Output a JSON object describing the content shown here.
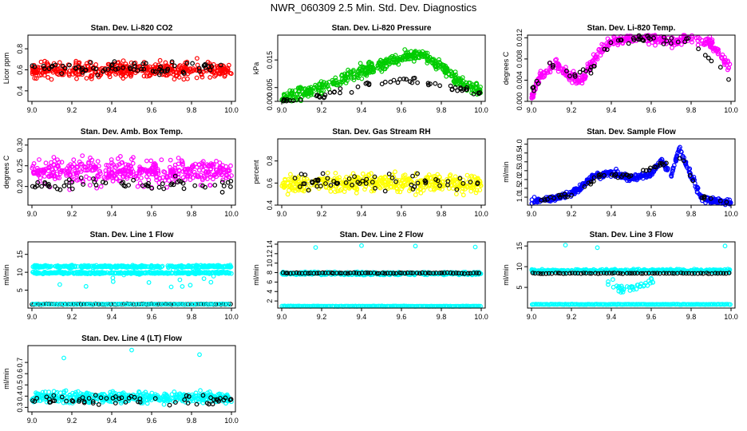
{
  "title": "NWR_060309  2.5 Min. Std. Dev. Diagnostics",
  "colors": {
    "red": "#ff0000",
    "green": "#00cc00",
    "magenta": "#ff00ff",
    "yellow": "#ffff00",
    "blue": "#0000ff",
    "cyan": "#00ffff",
    "black": "#000000"
  },
  "chart_data": [
    {
      "id": "p1",
      "type": "scatter",
      "title": "Stan. Dev. Li-820 CO2",
      "ylabel": "Licor ppm",
      "xlim": [
        8.98,
        10.02
      ],
      "ylim": [
        0.3,
        0.93
      ],
      "xticks": [
        "9.0",
        "9.2",
        "9.4",
        "9.6",
        "9.8",
        "10.0"
      ],
      "yticks": [
        {
          "v": 0.4,
          "label": "0.4"
        },
        {
          "v": 0.6,
          "label": "0.6"
        },
        {
          "v": 0.8,
          "label": "0.8"
        }
      ],
      "color": "red",
      "series": [
        {
          "name": "main",
          "kind": "noise",
          "n": 420,
          "center": 0.6,
          "spread": 0.09
        },
        {
          "name": "black",
          "kind": "noise",
          "n": 70,
          "center": 0.62,
          "spread": 0.08
        }
      ]
    },
    {
      "id": "p2",
      "type": "scatter",
      "title": "Stan. Dev. Li-820 Pressure",
      "ylabel": "kPa",
      "xlim": [
        8.98,
        10.02
      ],
      "ylim": [
        0,
        0.024
      ],
      "xticks": [
        "9.0",
        "9.2",
        "9.4",
        "9.6",
        "9.8",
        "10.0"
      ],
      "yticks": [
        {
          "v": 0.0,
          "label": "0.000"
        },
        {
          "v": 0.005,
          "label": "0.005"
        },
        {
          "v": 0.015,
          "label": "0.015"
        }
      ],
      "color": "green",
      "series": [
        {
          "name": "main",
          "kind": "curve",
          "n": 460,
          "curve": [
            [
              9.0,
              0.001
            ],
            [
              9.1,
              0.003
            ],
            [
              9.2,
              0.005
            ],
            [
              9.3,
              0.008
            ],
            [
              9.4,
              0.011
            ],
            [
              9.5,
              0.013
            ],
            [
              9.6,
              0.016
            ],
            [
              9.7,
              0.017
            ],
            [
              9.8,
              0.013
            ],
            [
              9.9,
              0.006
            ],
            [
              10.0,
              0.004
            ]
          ],
          "spread": 0.0025
        },
        {
          "name": "black",
          "kind": "curve",
          "n": 60,
          "curve": [
            [
              9.0,
              0.0
            ],
            [
              9.2,
              0.002
            ],
            [
              9.4,
              0.006
            ],
            [
              9.6,
              0.008
            ],
            [
              9.8,
              0.006
            ],
            [
              10.0,
              0.003
            ]
          ],
          "spread": 0.0015
        }
      ]
    },
    {
      "id": "p3",
      "type": "scatter",
      "title": "Stan. Dev. Li-820 Temp.",
      "ylabel": "degrees C",
      "xlim": [
        8.98,
        10.02
      ],
      "ylim": [
        0,
        0.0125
      ],
      "xticks": [
        "9.0",
        "9.2",
        "9.4",
        "9.6",
        "9.8",
        "10.0"
      ],
      "yticks": [
        {
          "v": 0.0,
          "label": "0.000"
        },
        {
          "v": 0.004,
          "label": "0.004"
        },
        {
          "v": 0.008,
          "label": "0.008"
        },
        {
          "v": 0.012,
          "label": "0.012"
        }
      ],
      "color": "magenta",
      "series": [
        {
          "name": "main",
          "kind": "curve",
          "n": 420,
          "curve": [
            [
              9.0,
              0.001
            ],
            [
              9.05,
              0.005
            ],
            [
              9.12,
              0.007
            ],
            [
              9.18,
              0.005
            ],
            [
              9.25,
              0.004
            ],
            [
              9.3,
              0.007
            ],
            [
              9.38,
              0.011
            ],
            [
              9.5,
              0.012
            ],
            [
              9.6,
              0.012
            ],
            [
              9.7,
              0.011
            ],
            [
              9.8,
              0.012
            ],
            [
              9.9,
              0.011
            ],
            [
              10.0,
              0.006
            ]
          ],
          "spread": 0.0012
        },
        {
          "name": "black",
          "kind": "curve",
          "n": 55,
          "curve": [
            [
              9.0,
              0.002
            ],
            [
              9.1,
              0.007
            ],
            [
              9.2,
              0.005
            ],
            [
              9.3,
              0.006
            ],
            [
              9.4,
              0.011
            ],
            [
              9.6,
              0.012
            ],
            [
              9.8,
              0.011
            ],
            [
              10.0,
              0.004
            ]
          ],
          "spread": 0.0009
        }
      ]
    },
    {
      "id": "p4",
      "type": "scatter",
      "title": "Stan. Dev. Amb. Box Temp.",
      "ylabel": "degrees C",
      "xlim": [
        8.98,
        10.02
      ],
      "ylim": [
        0.155,
        0.315
      ],
      "xticks": [
        "9.0",
        "9.2",
        "9.4",
        "9.6",
        "9.8",
        "10.0"
      ],
      "yticks": [
        {
          "v": 0.2,
          "label": "0.20"
        },
        {
          "v": 0.25,
          "label": "0.25"
        },
        {
          "v": 0.3,
          "label": "0.30"
        }
      ],
      "color": "magenta",
      "series": [
        {
          "name": "main",
          "kind": "noise",
          "n": 440,
          "center": 0.235,
          "spread": 0.035
        },
        {
          "name": "black",
          "kind": "noise",
          "n": 60,
          "center": 0.205,
          "spread": 0.02
        }
      ]
    },
    {
      "id": "p5",
      "type": "scatter",
      "title": "Stan. Dev. Gas Stream RH",
      "ylabel": "percent",
      "xlim": [
        8.98,
        10.02
      ],
      "ylim": [
        0.4,
        1.0
      ],
      "xticks": [
        "9.0",
        "9.2",
        "9.4",
        "9.6",
        "9.8",
        "10.0"
      ],
      "yticks": [
        {
          "v": 0.4,
          "label": "0.4"
        },
        {
          "v": 0.6,
          "label": "0.6"
        },
        {
          "v": 0.8,
          "label": "0.8"
        }
      ],
      "color": "yellow",
      "series": [
        {
          "name": "main",
          "kind": "noise",
          "n": 440,
          "center": 0.6,
          "spread": 0.1
        },
        {
          "name": "black",
          "kind": "noise",
          "n": 60,
          "center": 0.6,
          "spread": 0.08
        }
      ]
    },
    {
      "id": "p6",
      "type": "scatter",
      "title": "Stan. Dev. Sample Flow",
      "ylabel": "ml/min",
      "xlim": [
        8.98,
        10.02
      ],
      "ylim": [
        0.55,
        4.3
      ],
      "xticks": [
        "9.0",
        "9.2",
        "9.4",
        "9.6",
        "9.8",
        "10.0"
      ],
      "yticks": [
        {
          "v": 1.0,
          "label": "1.0"
        },
        {
          "v": 1.5,
          "label": "1.5"
        },
        {
          "v": 2.0,
          "label": "2.0"
        },
        {
          "v": 2.5,
          "label": "2.5"
        },
        {
          "v": 3.0,
          "label": "3.0"
        },
        {
          "v": 3.5,
          "label": "3.5"
        },
        {
          "v": 4.0,
          "label": "4.0"
        }
      ],
      "color": "blue",
      "series": [
        {
          "name": "main",
          "kind": "curve",
          "n": 460,
          "curve": [
            [
              9.0,
              0.8
            ],
            [
              9.1,
              0.9
            ],
            [
              9.2,
              1.2
            ],
            [
              9.25,
              1.6
            ],
            [
              9.3,
              2.1
            ],
            [
              9.4,
              2.4
            ],
            [
              9.5,
              2.1
            ],
            [
              9.6,
              2.3
            ],
            [
              9.65,
              3.1
            ],
            [
              9.7,
              2.2
            ],
            [
              9.74,
              3.8
            ],
            [
              9.8,
              2.2
            ],
            [
              9.85,
              1.0
            ],
            [
              9.9,
              0.8
            ],
            [
              10.0,
              0.7
            ]
          ],
          "spread": 0.22
        },
        {
          "name": "black",
          "kind": "curve",
          "n": 55,
          "curve": [
            [
              9.0,
              0.8
            ],
            [
              9.2,
              1.1
            ],
            [
              9.35,
              2.3
            ],
            [
              9.5,
              2.2
            ],
            [
              9.65,
              2.8
            ],
            [
              9.75,
              3.3
            ],
            [
              9.85,
              1.0
            ],
            [
              10.0,
              0.7
            ]
          ],
          "spread": 0.15
        }
      ]
    },
    {
      "id": "p7",
      "type": "scatter",
      "title": "Stan. Dev. Line 1 Flow",
      "ylabel": "ml/min",
      "xlim": [
        8.98,
        10.02
      ],
      "ylim": [
        0,
        18.5
      ],
      "xticks": [
        "9.0",
        "9.2",
        "9.4",
        "9.6",
        "9.8",
        "10.0"
      ],
      "yticks": [
        {
          "v": 5,
          "label": "5"
        },
        {
          "v": 10,
          "label": "10"
        },
        {
          "v": 15,
          "label": "15"
        }
      ],
      "color": "cyan",
      "series": [
        {
          "name": "band_high",
          "kind": "noise",
          "n": 320,
          "center": 11.6,
          "spread": 0.4
        },
        {
          "name": "band_mid",
          "kind": "noise",
          "n": 320,
          "center": 9.8,
          "spread": 0.35
        },
        {
          "name": "outliers",
          "kind": "noise",
          "n": 22,
          "center": 8.0,
          "spread": 4.0
        },
        {
          "name": "black_low",
          "kind": "line",
          "n": 110,
          "y": 1.1,
          "spread": 0.15,
          "color": "black"
        },
        {
          "name": "cyan_low",
          "kind": "line",
          "n": 80,
          "y": 1.1,
          "spread": 0.15
        }
      ]
    },
    {
      "id": "p8",
      "type": "scatter",
      "title": "Stan. Dev. Line 2 Flow",
      "ylabel": "ml/min",
      "xlim": [
        8.98,
        10.02
      ],
      "ylim": [
        0.5,
        14.5
      ],
      "xticks": [
        "9.0",
        "9.2",
        "9.4",
        "9.6",
        "9.8",
        "10.0"
      ],
      "yticks": [
        {
          "v": 2,
          "label": "2"
        },
        {
          "v": 4,
          "label": "4"
        },
        {
          "v": 6,
          "label": "6"
        },
        {
          "v": 8,
          "label": "8"
        },
        {
          "v": 10,
          "label": "10"
        },
        {
          "v": 12,
          "label": "12"
        },
        {
          "v": 14,
          "label": "14"
        }
      ],
      "color": "cyan",
      "series": [
        {
          "name": "band",
          "kind": "noise",
          "n": 420,
          "center": 7.8,
          "spread": 0.35
        },
        {
          "name": "low",
          "kind": "line",
          "n": 160,
          "y": 0.9,
          "spread": 0.08
        },
        {
          "name": "outliers",
          "kind": "scatter",
          "points": [
            [
              9.17,
              13.3
            ],
            [
              9.4,
              13.7
            ],
            [
              9.67,
              13.6
            ],
            [
              9.97,
              13.4
            ]
          ]
        },
        {
          "name": "black",
          "kind": "line",
          "n": 70,
          "y": 7.9,
          "spread": 0.15,
          "color": "black"
        }
      ]
    },
    {
      "id": "p9",
      "type": "scatter",
      "title": "Stan. Dev. Line 3 Flow",
      "ylabel": "ml/min",
      "xlim": [
        8.98,
        10.02
      ],
      "ylim": [
        0,
        16
      ],
      "xticks": [
        "9.0",
        "9.2",
        "9.4",
        "9.6",
        "9.8",
        "10.0"
      ],
      "yticks": [
        {
          "v": 5,
          "label": "5"
        },
        {
          "v": 10,
          "label": "10"
        },
        {
          "v": 15,
          "label": "15"
        }
      ],
      "color": "cyan",
      "series": [
        {
          "name": "band",
          "kind": "noise",
          "n": 420,
          "center": 9.0,
          "spread": 0.45
        },
        {
          "name": "low",
          "kind": "line",
          "n": 160,
          "y": 0.9,
          "spread": 0.1
        },
        {
          "name": "dip",
          "kind": "curve",
          "n": 40,
          "curve": [
            [
              9.38,
              6.5
            ],
            [
              9.45,
              4.5
            ],
            [
              9.55,
              5.5
            ],
            [
              9.62,
              6.8
            ]
          ],
          "spread": 1.2
        },
        {
          "name": "outliers",
          "kind": "scatter",
          "points": [
            [
              9.17,
              15.2
            ],
            [
              9.33,
              14.6
            ],
            [
              9.97,
              15.0
            ]
          ]
        },
        {
          "name": "black",
          "kind": "line",
          "n": 70,
          "y": 8.4,
          "spread": 0.15,
          "color": "black"
        }
      ]
    },
    {
      "id": "p10",
      "type": "scatter",
      "title": "Stan. Dev. Line 4 (LT) Flow",
      "ylabel": "ml/min",
      "xlim": [
        8.98,
        10.02
      ],
      "ylim": [
        0.26,
        0.85
      ],
      "xticks": [
        "9.0",
        "9.2",
        "9.4",
        "9.6",
        "9.8",
        "10.0"
      ],
      "yticks": [
        {
          "v": 0.3,
          "label": "0.3"
        },
        {
          "v": 0.4,
          "label": "0.4"
        },
        {
          "v": 0.5,
          "label": "0.5"
        },
        {
          "v": 0.6,
          "label": "0.6"
        },
        {
          "v": 0.7,
          "label": "0.7"
        }
      ],
      "color": "cyan",
      "series": [
        {
          "name": "main",
          "kind": "noise",
          "n": 460,
          "center": 0.39,
          "spread": 0.06
        },
        {
          "name": "outliers",
          "kind": "scatter",
          "points": [
            [
              9.16,
              0.74
            ],
            [
              9.5,
              0.81
            ],
            [
              9.84,
              0.77
            ]
          ]
        },
        {
          "name": "black",
          "kind": "noise",
          "n": 60,
          "center": 0.37,
          "spread": 0.05,
          "color": "black"
        }
      ]
    }
  ]
}
